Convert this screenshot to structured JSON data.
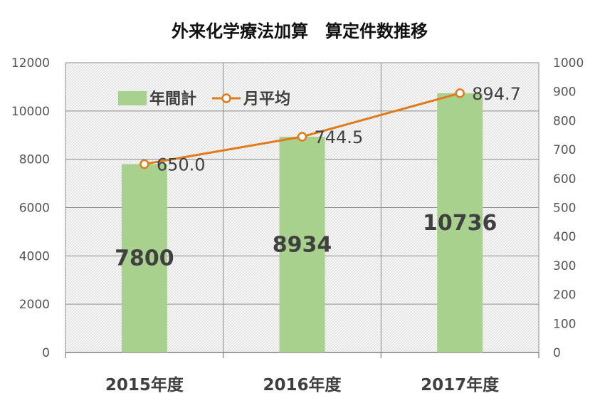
{
  "chart_data": {
    "type": "bar",
    "title": "外来化学療法加算　算定件数推移",
    "categories": [
      "2015年度",
      "2016年度",
      "2017年度"
    ],
    "series": [
      {
        "name": "年間計",
        "type": "bar",
        "axis": "left",
        "values": [
          7800,
          8934,
          10736
        ],
        "labels": [
          "7800",
          "8934",
          "10736"
        ]
      },
      {
        "name": "月平均",
        "type": "line",
        "axis": "right",
        "values": [
          650.0,
          744.5,
          894.7
        ],
        "labels": [
          "650.0",
          "744.5",
          "894.7"
        ]
      }
    ],
    "y_left": {
      "min": 0,
      "max": 12000,
      "step": 2000,
      "ticks": [
        "0",
        "2000",
        "4000",
        "6000",
        "8000",
        "10000",
        "12000"
      ]
    },
    "y_right": {
      "min": 0,
      "max": 1000,
      "step": 100,
      "ticks": [
        "0",
        "100",
        "200",
        "300",
        "400",
        "500",
        "600",
        "700",
        "800",
        "900",
        "1000"
      ]
    },
    "legend": "top-left",
    "grid": true,
    "colors": {
      "bar": "#a9d18e",
      "line": "#e07b1a",
      "marker_fill": "#ffffff",
      "grid": "#888888",
      "plot_pattern": "#d0d0d0"
    }
  }
}
